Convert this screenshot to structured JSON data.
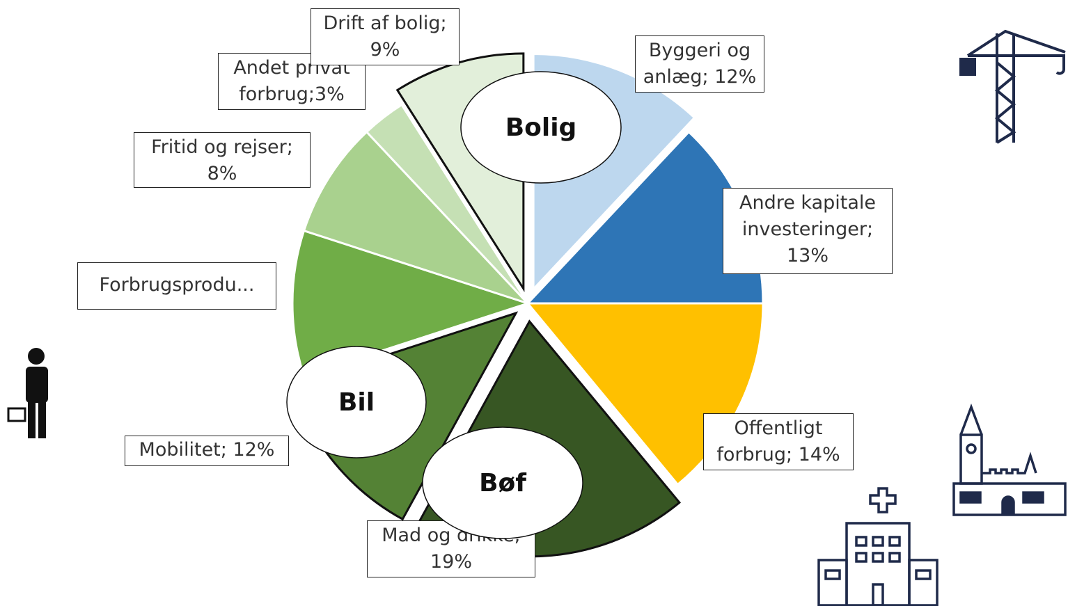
{
  "chart_data": {
    "type": "pie",
    "categories": [
      "Byggeri og anlæg",
      "Andre kapitale investeringer",
      "Offentligt forbrug",
      "Mad og drikke",
      "Mobilitet",
      "Forbrugsprodukter",
      "Fritid og rejser",
      "Andet privat forbrug",
      "Drift af bolig"
    ],
    "values": [
      12,
      13,
      14,
      19,
      12,
      10,
      8,
      3,
      9
    ],
    "value_labels": [
      "Byggeri og anlæg; 12%",
      "Andre kapitale investeringer; 13%",
      "Offentligt forbrug; 14%",
      "Mad og drikke; 19%",
      "Mobilitet; 12%",
      "Forbrugsprodu...",
      "Fritid og rejser; 8%",
      "Andet privat forbrug;3%",
      "Drift af bolig; 9%"
    ],
    "colors": [
      "#bdd7ee",
      "#2e75b6",
      "#ffc000",
      "#375623",
      "#548235",
      "#70ad47",
      "#a9d18e",
      "#c5e0b4",
      "#e2efda"
    ],
    "annotations": [
      "Bolig",
      "Bil",
      "Bøf"
    ]
  }
}
